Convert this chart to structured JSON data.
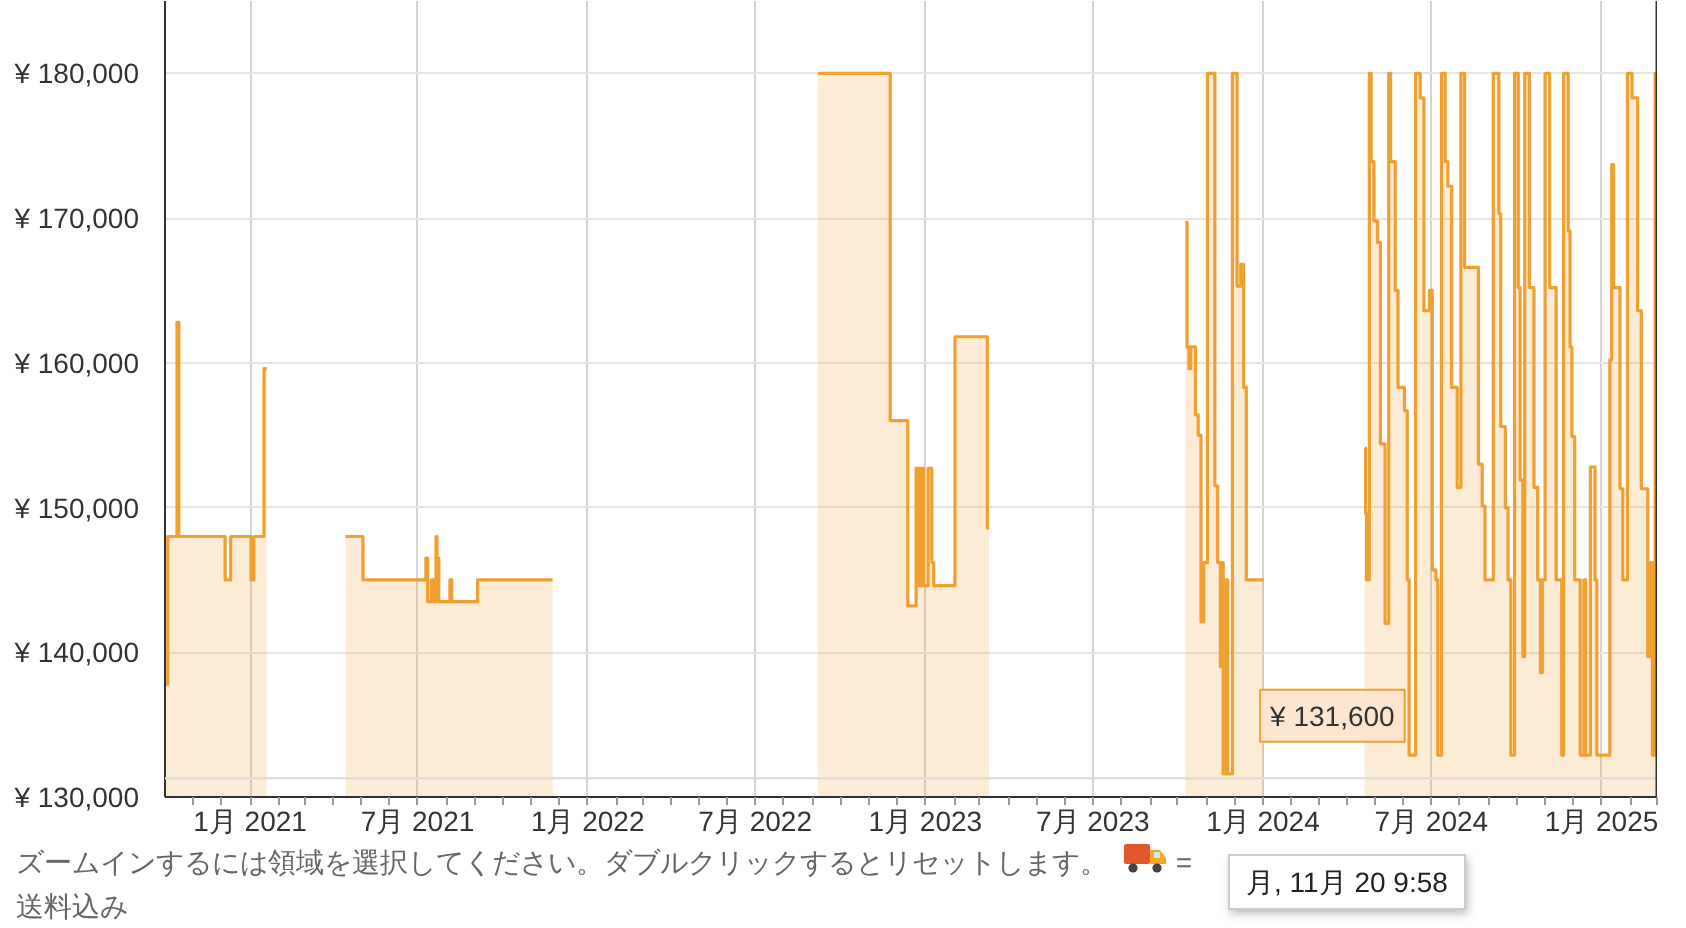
{
  "chart_data": {
    "type": "area",
    "series": [
      {
        "color": "#f0a030",
        "x": [
          "2020-10-02",
          "2020-10-04",
          "2020-10-04",
          "2020-10-14",
          "2020-10-14",
          "2020-10-16",
          "2020-10-16",
          "2020-12-05",
          "2020-12-05",
          "2020-12-11",
          "2020-12-11",
          "2021-01-02",
          "2021-01-02",
          "2021-01-05",
          "2021-01-05",
          "2021-01-16",
          "2021-01-16",
          "2021-01-19"
        ],
        "values": [
          137800,
          137800,
          148000,
          148000,
          162800,
          162800,
          148000,
          148000,
          145000,
          145000,
          148000,
          148000,
          145000,
          145000,
          148000,
          148000,
          159600,
          159600
        ]
      },
      {
        "color": "#f0a030",
        "x": [
          "2021-04-14",
          "2021-05-03",
          "2021-05-03",
          "2021-07-10",
          "2021-07-10",
          "2021-07-12",
          "2021-07-12",
          "2021-07-16",
          "2021-07-16",
          "2021-07-18",
          "2021-07-18",
          "2021-07-21",
          "2021-07-21",
          "2021-07-22",
          "2021-07-22",
          "2021-07-24",
          "2021-07-24",
          "2021-08-05",
          "2021-08-05",
          "2021-08-07",
          "2021-08-07",
          "2021-09-04",
          "2021-09-04",
          "2021-11-24"
        ],
        "values": [
          148000,
          148000,
          145000,
          145000,
          146500,
          146500,
          143500,
          143500,
          145000,
          145000,
          143500,
          143500,
          148000,
          148000,
          146500,
          146500,
          143500,
          143500,
          145000,
          145000,
          143500,
          143500,
          145000,
          145000
        ]
      },
      {
        "color": "#f0a030",
        "x": [
          "2022-09-07",
          "2022-11-24",
          "2022-11-24",
          "2022-12-13",
          "2022-12-13",
          "2022-12-22",
          "2022-12-22",
          "2022-12-24",
          "2022-12-24",
          "2022-12-26",
          "2022-12-26",
          "2022-12-27",
          "2022-12-27",
          "2022-12-29",
          "2022-12-29",
          "2022-12-30",
          "2022-12-30",
          "2023-01-04",
          "2023-01-04",
          "2023-01-08",
          "2023-01-08",
          "2023-01-10",
          "2023-01-10",
          "2023-02-02",
          "2023-02-02",
          "2023-03-09",
          "2023-03-09",
          "2023-03-11"
        ],
        "values": [
          180000,
          180000,
          156000,
          156000,
          143200,
          143200,
          152700,
          152700,
          144600,
          144600,
          152700,
          152700,
          144600,
          144600,
          152700,
          152700,
          144600,
          144600,
          152700,
          152700,
          146200,
          146200,
          144600,
          144600,
          161800,
          161800,
          148600,
          148600
        ]
      },
      {
        "color": "#f0a030",
        "x": [
          "2023-10-09",
          "2023-10-11",
          "2023-10-11",
          "2023-10-13",
          "2023-10-13",
          "2023-10-15",
          "2023-10-15",
          "2023-10-20",
          "2023-10-20",
          "2023-10-23",
          "2023-10-23",
          "2023-10-26",
          "2023-10-26",
          "2023-10-29",
          "2023-10-29",
          "2023-11-02",
          "2023-11-02",
          "2023-11-10",
          "2023-11-10",
          "2023-11-13",
          "2023-11-13",
          "2023-11-16",
          "2023-11-16",
          "2023-11-18",
          "2023-11-18",
          "2023-11-19",
          "2023-11-19",
          "2023-11-22",
          "2023-11-22",
          "2023-11-24",
          "2023-11-24",
          "2023-11-29",
          "2023-11-29",
          "2023-12-04",
          "2023-12-04",
          "2023-12-08",
          "2023-12-08",
          "2023-12-11",
          "2023-12-11",
          "2023-12-14",
          "2023-12-14",
          "2024-01-02"
        ],
        "values": [
          169700,
          169700,
          161100,
          161100,
          159600,
          159600,
          161100,
          161100,
          156400,
          156400,
          155000,
          155000,
          142100,
          142100,
          146200,
          146200,
          180000,
          180000,
          151500,
          151500,
          146200,
          146200,
          139000,
          139000,
          146200,
          146200,
          131600,
          131600,
          145000,
          145000,
          131600,
          131600,
          180000,
          180000,
          165300,
          165300,
          166800,
          166800,
          158300,
          158300,
          145000,
          145000
        ]
      },
      {
        "color": "#f0a030",
        "x": [
          "2024-04-20",
          "2024-04-21",
          "2024-04-21",
          "2024-04-22",
          "2024-04-22",
          "2024-04-25",
          "2024-04-25",
          "2024-04-27",
          "2024-04-27",
          "2024-04-30",
          "2024-04-30",
          "2024-05-04",
          "2024-05-04",
          "2024-05-07",
          "2024-05-07",
          "2024-05-12",
          "2024-05-12",
          "2024-05-16",
          "2024-05-16",
          "2024-05-18",
          "2024-05-18",
          "2024-05-23",
          "2024-05-23",
          "2024-05-26",
          "2024-05-26",
          "2024-06-02",
          "2024-06-02",
          "2024-06-05",
          "2024-06-05",
          "2024-06-07",
          "2024-06-07",
          "2024-06-14",
          "2024-06-14",
          "2024-06-19",
          "2024-06-19",
          "2024-06-23",
          "2024-06-23",
          "2024-06-29",
          "2024-06-29",
          "2024-07-02",
          "2024-07-02",
          "2024-07-06",
          "2024-07-06",
          "2024-07-08",
          "2024-07-08",
          "2024-07-12",
          "2024-07-12",
          "2024-07-16",
          "2024-07-16",
          "2024-07-19",
          "2024-07-19",
          "2024-07-23",
          "2024-07-23",
          "2024-07-29",
          "2024-07-29",
          "2024-08-02",
          "2024-08-02",
          "2024-08-06",
          "2024-08-06",
          "2024-08-21",
          "2024-08-21",
          "2024-08-25",
          "2024-08-25",
          "2024-08-28",
          "2024-08-28",
          "2024-09-06",
          "2024-09-06",
          "2024-09-12",
          "2024-09-12",
          "2024-09-14",
          "2024-09-14",
          "2024-09-19",
          "2024-09-19",
          "2024-09-22",
          "2024-09-22",
          "2024-09-25",
          "2024-09-25",
          "2024-09-29",
          "2024-09-29",
          "2024-10-03",
          "2024-10-03",
          "2024-10-05",
          "2024-10-05",
          "2024-10-08",
          "2024-10-08",
          "2024-10-10",
          "2024-10-10",
          "2024-10-15",
          "2024-10-15",
          "2024-10-20",
          "2024-10-20",
          "2024-10-24",
          "2024-10-24",
          "2024-10-27",
          "2024-10-27",
          "2024-10-29",
          "2024-10-29",
          "2024-11-01",
          "2024-11-01",
          "2024-11-06",
          "2024-11-06",
          "2024-11-13",
          "2024-11-13",
          "2024-11-19",
          "2024-11-19",
          "2024-11-21",
          "2024-11-21",
          "2024-11-26",
          "2024-11-26",
          "2024-11-28",
          "2024-11-28",
          "2024-11-30",
          "2024-11-30",
          "2024-12-03",
          "2024-12-03",
          "2024-12-09",
          "2024-12-09",
          "2024-12-13",
          "2024-12-13",
          "2024-12-15",
          "2024-12-15",
          "2024-12-20",
          "2024-12-20",
          "2024-12-25",
          "2024-12-25",
          "2024-12-27",
          "2024-12-27",
          "2025-01-10",
          "2025-01-10",
          "2025-01-12",
          "2025-01-12",
          "2025-01-14",
          "2025-01-14",
          "2025-01-21",
          "2025-01-21",
          "2025-01-24",
          "2025-01-24",
          "2025-01-29",
          "2025-01-29",
          "2025-02-03",
          "2025-02-03",
          "2025-02-09",
          "2025-02-09",
          "2025-02-13",
          "2025-02-13",
          "2025-02-20",
          "2025-02-20",
          "2025-02-23",
          "2025-02-23",
          "2025-02-25",
          "2025-02-25",
          "2025-02-28",
          "2025-02-28",
          "2025-03-02"
        ],
        "values": [
          154100,
          154100,
          149600,
          149600,
          145000,
          145000,
          180000,
          180000,
          173900,
          173900,
          169800,
          169800,
          168300,
          168300,
          154400,
          154400,
          142000,
          142000,
          180000,
          180000,
          173900,
          173900,
          165000,
          165000,
          158300,
          158300,
          156700,
          156700,
          145000,
          145000,
          132900,
          132900,
          180000,
          180000,
          178300,
          178300,
          163600,
          163600,
          165000,
          165000,
          145700,
          145700,
          145000,
          145000,
          132900,
          132900,
          180000,
          180000,
          173900,
          173900,
          172200,
          172200,
          158300,
          158300,
          151400,
          151400,
          180000,
          180000,
          166600,
          166600,
          153000,
          153000,
          150100,
          150100,
          145000,
          145000,
          180000,
          180000,
          170300,
          170300,
          155600,
          155600,
          150000,
          150000,
          145000,
          145000,
          132900,
          132900,
          180000,
          180000,
          165200,
          165200,
          151900,
          151900,
          139700,
          139700,
          180000,
          180000,
          165200,
          165200,
          151400,
          151400,
          145000,
          145000,
          138600,
          138600,
          145000,
          145000,
          180000,
          180000,
          165200,
          165200,
          145000,
          145000,
          132900,
          132900,
          180000,
          180000,
          169100,
          169100,
          161100,
          161100,
          154900,
          154900,
          145000,
          145000,
          132900,
          132900,
          145000,
          145000,
          132900,
          132900,
          152800,
          152800,
          145000,
          145000,
          132900,
          132900,
          160200,
          160200,
          173700,
          173700,
          165200,
          165200,
          151300,
          151300,
          145000,
          145000,
          180000,
          180000,
          178300,
          178300,
          163600,
          163600,
          151300,
          151300,
          139700,
          139700,
          146200,
          146200,
          132900,
          132900,
          180000,
          180000
        ]
      }
    ],
    "xlim": [
      "2020-10-01",
      "2025-03-02"
    ],
    "ylim": [
      130000,
      185000
    ],
    "xticks": [
      {
        "value": "2020-11-01",
        "label": null
      },
      {
        "value": "2020-12-01",
        "label": null
      },
      {
        "value": "2021-01-01",
        "label": "1月 2021"
      },
      {
        "value": "2021-02-01",
        "label": null
      },
      {
        "value": "2021-03-01",
        "label": null
      },
      {
        "value": "2021-04-01",
        "label": null
      },
      {
        "value": "2021-05-01",
        "label": null
      },
      {
        "value": "2021-06-01",
        "label": null
      },
      {
        "value": "2021-07-01",
        "label": "7月 2021"
      },
      {
        "value": "2021-08-01",
        "label": null
      },
      {
        "value": "2021-09-01",
        "label": null
      },
      {
        "value": "2021-10-01",
        "label": null
      },
      {
        "value": "2021-11-01",
        "label": null
      },
      {
        "value": "2021-12-01",
        "label": null
      },
      {
        "value": "2022-01-01",
        "label": "1月 2022"
      },
      {
        "value": "2022-02-01",
        "label": null
      },
      {
        "value": "2022-03-01",
        "label": null
      },
      {
        "value": "2022-04-01",
        "label": null
      },
      {
        "value": "2022-05-01",
        "label": null
      },
      {
        "value": "2022-06-01",
        "label": null
      },
      {
        "value": "2022-07-01",
        "label": "7月 2022"
      },
      {
        "value": "2022-08-01",
        "label": null
      },
      {
        "value": "2022-09-01",
        "label": null
      },
      {
        "value": "2022-10-01",
        "label": null
      },
      {
        "value": "2022-11-01",
        "label": null
      },
      {
        "value": "2022-12-01",
        "label": null
      },
      {
        "value": "2023-01-01",
        "label": "1月 2023"
      },
      {
        "value": "2023-02-01",
        "label": null
      },
      {
        "value": "2023-03-01",
        "label": null
      },
      {
        "value": "2023-04-01",
        "label": null
      },
      {
        "value": "2023-05-01",
        "label": null
      },
      {
        "value": "2023-06-01",
        "label": null
      },
      {
        "value": "2023-07-01",
        "label": "7月 2023"
      },
      {
        "value": "2023-08-01",
        "label": null
      },
      {
        "value": "2023-09-01",
        "label": null
      },
      {
        "value": "2023-10-01",
        "label": null
      },
      {
        "value": "2023-11-01",
        "label": null
      },
      {
        "value": "2023-12-01",
        "label": null
      },
      {
        "value": "2024-01-01",
        "label": "1月 2024"
      },
      {
        "value": "2024-02-01",
        "label": null
      },
      {
        "value": "2024-03-01",
        "label": null
      },
      {
        "value": "2024-04-01",
        "label": null
      },
      {
        "value": "2024-05-01",
        "label": null
      },
      {
        "value": "2024-06-01",
        "label": null
      },
      {
        "value": "2024-07-01",
        "label": "7月 2024"
      },
      {
        "value": "2024-08-01",
        "label": null
      },
      {
        "value": "2024-09-01",
        "label": null
      },
      {
        "value": "2024-10-01",
        "label": null
      },
      {
        "value": "2024-11-01",
        "label": null
      },
      {
        "value": "2024-12-01",
        "label": null
      },
      {
        "value": "2025-01-01",
        "label": "1月 2025"
      },
      {
        "value": "2025-02-01",
        "label": null
      },
      {
        "value": "2025-03-01",
        "label": null
      }
    ],
    "yticks": [
      {
        "value": 130000,
        "label": "¥ 130,000"
      },
      {
        "value": 140000,
        "label": "¥ 140,000"
      },
      {
        "value": 150000,
        "label": "¥ 150,000"
      },
      {
        "value": 160000,
        "label": "¥ 160,000"
      },
      {
        "value": 170000,
        "label": "¥ 170,000"
      },
      {
        "value": 180000,
        "label": "¥ 180,000"
      }
    ],
    "grid": true,
    "ref_lines": [
      {
        "axis": "y",
        "value": 131300,
        "color": "#dddddd"
      }
    ],
    "annotations": [
      {
        "text": "¥ 131,600",
        "x": "2023-11-20",
        "y": 131600
      },
      "ズームインするには領域を選択してください。ダブルクリックするとリセットします。",
      "= 送料込み",
      "月, 11月 20 9:58"
    ]
  }
}
